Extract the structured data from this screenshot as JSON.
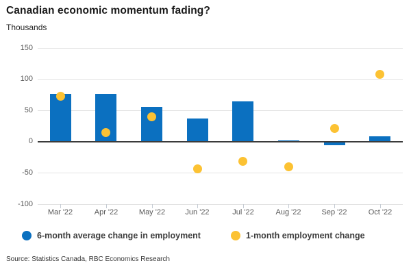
{
  "header": {
    "title": "Canadian economic momentum fading?",
    "subtitle": "Thousands"
  },
  "chart_data": {
    "type": "bar",
    "title": "Canadian economic momentum fading?",
    "ylabel": "Thousands",
    "xlabel": "",
    "categories": [
      "Mar '22",
      "Apr '22",
      "May '22",
      "Jun '22",
      "Jul '22",
      "Aug '22",
      "Sep '22",
      "Oct '22"
    ],
    "series": [
      {
        "name": "6-month average change in employment",
        "type": "bar",
        "color": "#0b70c0",
        "values": [
          76,
          76,
          56,
          37,
          64,
          2,
          -5,
          9
        ]
      },
      {
        "name": "1-month employment change",
        "type": "scatter",
        "color": "#fcc233",
        "values": [
          73,
          15,
          40,
          -43,
          -31,
          -40,
          21,
          108
        ]
      }
    ],
    "ylim": [
      -100,
      150
    ],
    "yticks": [
      150,
      100,
      50,
      0,
      -50,
      -100
    ],
    "grid": true,
    "zero_line": true,
    "legend_position": "bottom"
  },
  "legend": {
    "items": [
      {
        "label": "6-month average change in employment",
        "color": "#0b70c0"
      },
      {
        "label": "1-month employment change",
        "color": "#fcc233"
      }
    ]
  },
  "footer": {
    "source": "Source: Statistics Canada, RBC Economics Research"
  }
}
